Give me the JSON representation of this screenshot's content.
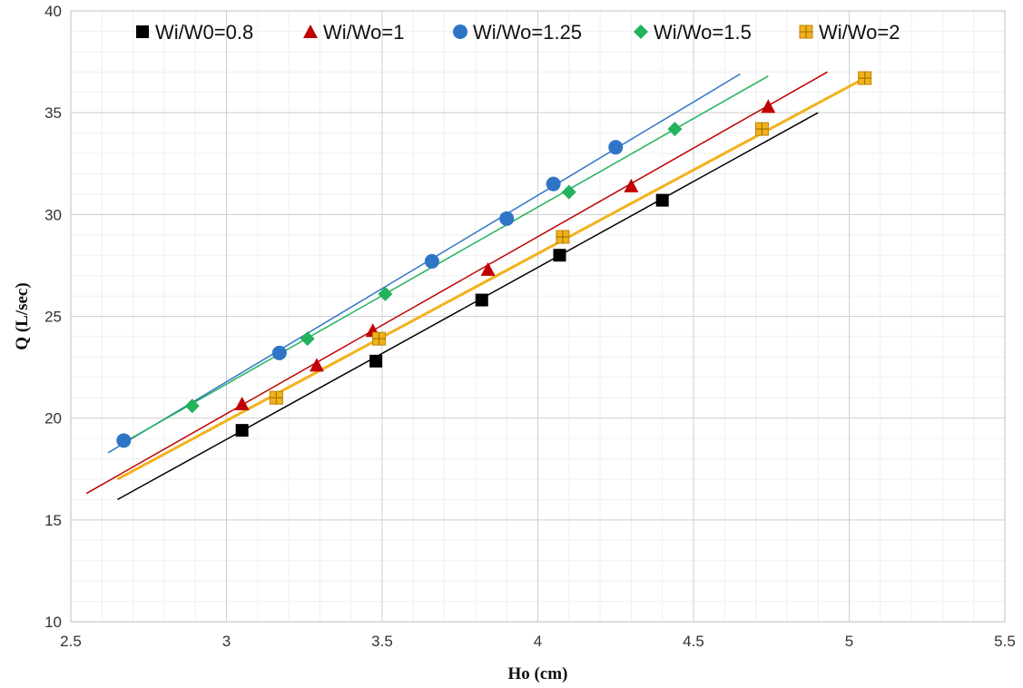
{
  "chart_data": {
    "type": "scatter",
    "xlabel": "Ho (cm)",
    "ylabel": "Q (L/sec)",
    "xlim": [
      2.5,
      5.5
    ],
    "ylim": [
      10,
      40
    ],
    "x_ticks": [
      2.5,
      3,
      3.5,
      4,
      4.5,
      5,
      5.5
    ],
    "y_ticks": [
      10,
      15,
      20,
      25,
      30,
      35,
      40
    ],
    "x_tick_labels": [
      "2.5",
      "3",
      "3.5",
      "4",
      "4.5",
      "5",
      "5.5"
    ],
    "y_tick_labels": [
      "10",
      "15",
      "20",
      "25",
      "30",
      "35",
      "40"
    ],
    "grid": true,
    "minor_grid": true,
    "legend_position": "top",
    "series": [
      {
        "name": "Wi/W0=0.8",
        "marker": "square",
        "color": "#000000",
        "x": [
          3.05,
          3.48,
          3.82,
          4.07,
          4.4
        ],
        "y": [
          19.4,
          22.8,
          25.8,
          28.0,
          30.7
        ],
        "trendline": {
          "x": [
            2.65,
            4.9
          ],
          "y": [
            16.0,
            35.0
          ]
        }
      },
      {
        "name": "Wi/Wo=1",
        "marker": "triangle",
        "color": "#c00000",
        "x": [
          3.05,
          3.29,
          3.47,
          3.84,
          4.3,
          4.74
        ],
        "y": [
          20.7,
          22.6,
          24.3,
          27.3,
          31.4,
          35.3
        ],
        "trendline": {
          "x": [
            2.55,
            4.93
          ],
          "y": [
            16.3,
            37.0
          ]
        }
      },
      {
        "name": "Wi/Wo=1.25",
        "marker": "circle",
        "color": "#2e75c6",
        "x": [
          2.67,
          3.17,
          3.66,
          3.9,
          4.05,
          4.25
        ],
        "y": [
          18.9,
          23.2,
          27.7,
          29.8,
          31.5,
          33.3
        ],
        "trendline": {
          "x": [
            2.62,
            4.65
          ],
          "y": [
            18.3,
            36.9
          ]
        }
      },
      {
        "name": "Wi/Wo=1.5",
        "marker": "diamond",
        "color": "#22b35c",
        "x": [
          2.89,
          3.26,
          3.51,
          4.1,
          4.44
        ],
        "y": [
          20.6,
          23.9,
          26.1,
          31.1,
          34.2
        ],
        "trendline": {
          "x": [
            2.67,
            4.74
          ],
          "y": [
            18.8,
            36.8
          ]
        }
      },
      {
        "name": "Wi/Wo=2",
        "marker": "square-cross",
        "color": "#f2b21c",
        "x": [
          3.16,
          3.49,
          4.08,
          4.72,
          5.05
        ],
        "y": [
          21.0,
          23.9,
          28.9,
          34.2,
          36.7
        ],
        "trendline": {
          "x": [
            2.65,
            5.05
          ],
          "y": [
            17.0,
            36.7
          ]
        }
      }
    ]
  }
}
